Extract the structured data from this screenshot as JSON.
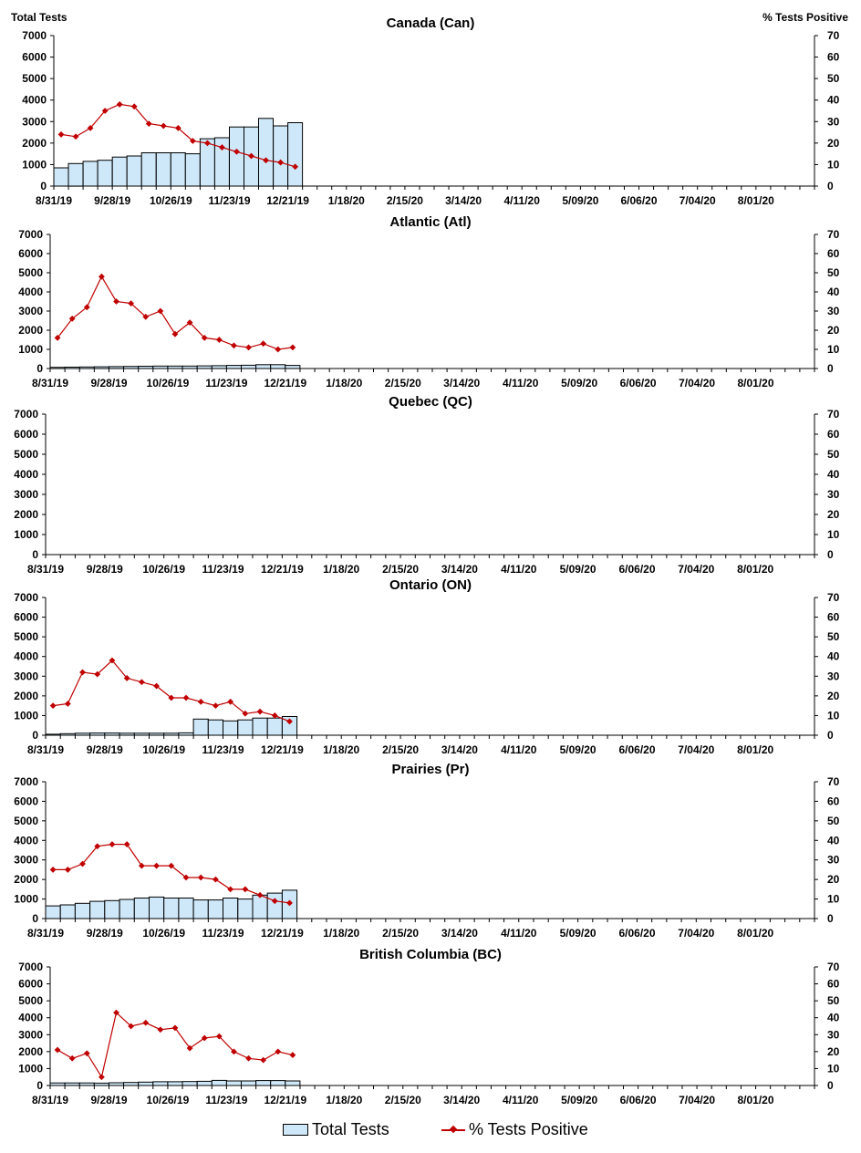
{
  "axis_headers": {
    "left": "Total Tests",
    "right": "% Tests Positive"
  },
  "legend": {
    "bars": "Total Tests",
    "line": "% Tests Positive"
  },
  "colors": {
    "bar_fill": "#cfe8f9",
    "bar_stroke": "#000000",
    "line": "#c00000"
  },
  "x_tick_labels": [
    "8/31/19",
    "9/28/19",
    "10/26/19",
    "11/23/19",
    "12/21/19",
    "1/18/20",
    "2/15/20",
    "3/14/20",
    "4/11/20",
    "5/09/20",
    "6/06/20",
    "7/04/20",
    "8/01/20"
  ],
  "left_ticks": [
    "0",
    "1000",
    "2000",
    "3000",
    "4000",
    "5000",
    "6000",
    "7000"
  ],
  "right_ticks": [
    "0",
    "10",
    "20",
    "30",
    "40",
    "50",
    "60",
    "70"
  ],
  "chart_data": [
    {
      "type": "bar",
      "title": "Canada (Can)",
      "y_left_range": [
        0,
        7000
      ],
      "y_right_range": [
        0,
        70
      ],
      "weeks_on_axis": 52,
      "series": [
        {
          "name": "Total Tests",
          "axis": "left",
          "values": [
            850,
            1050,
            1150,
            1200,
            1350,
            1400,
            1550,
            1550,
            1550,
            1500,
            2200,
            2250,
            2750,
            2750,
            3150,
            2800,
            2950
          ]
        },
        {
          "name": "% Tests Positive",
          "axis": "right",
          "values": [
            24,
            23,
            27,
            35,
            38,
            37,
            29,
            28,
            27,
            21,
            20,
            18,
            16,
            14,
            12,
            11,
            9
          ]
        }
      ]
    },
    {
      "type": "bar",
      "title": "Atlantic (Atl)",
      "y_left_range": [
        0,
        7000
      ],
      "y_right_range": [
        0,
        70
      ],
      "weeks_on_axis": 52,
      "series": [
        {
          "name": "Total Tests",
          "axis": "left",
          "values": [
            60,
            70,
            80,
            90,
            100,
            110,
            120,
            130,
            130,
            130,
            140,
            150,
            160,
            170,
            200,
            200,
            160
          ]
        },
        {
          "name": "% Tests Positive",
          "axis": "right",
          "values": [
            16,
            26,
            32,
            48,
            35,
            34,
            27,
            30,
            18,
            24,
            16,
            15,
            12,
            11,
            13,
            10,
            11
          ]
        }
      ]
    },
    {
      "type": "bar",
      "title": "Quebec (QC)",
      "y_left_range": [
        0,
        7000
      ],
      "y_right_range": [
        0,
        70
      ],
      "weeks_on_axis": 52,
      "series": [
        {
          "name": "Total Tests",
          "axis": "left",
          "values": []
        },
        {
          "name": "% Tests Positive",
          "axis": "right",
          "values": []
        }
      ]
    },
    {
      "type": "bar",
      "title": "Ontario (ON)",
      "y_left_range": [
        0,
        7000
      ],
      "y_right_range": [
        0,
        70
      ],
      "weeks_on_axis": 52,
      "series": [
        {
          "name": "Total Tests",
          "axis": "left",
          "values": [
            50,
            80,
            100,
            110,
            110,
            100,
            100,
            100,
            100,
            120,
            820,
            780,
            730,
            780,
            870,
            870,
            950
          ]
        },
        {
          "name": "% Tests Positive",
          "axis": "right",
          "values": [
            15,
            16,
            32,
            31,
            38,
            29,
            27,
            25,
            19,
            19,
            17,
            15,
            17,
            11,
            12,
            10,
            7
          ]
        }
      ]
    },
    {
      "type": "bar",
      "title": "Prairies (Pr)",
      "y_left_range": [
        0,
        7000
      ],
      "y_right_range": [
        0,
        70
      ],
      "weeks_on_axis": 52,
      "series": [
        {
          "name": "Total Tests",
          "axis": "left",
          "values": [
            650,
            700,
            780,
            880,
            920,
            980,
            1050,
            1100,
            1050,
            1050,
            950,
            950,
            1050,
            1000,
            1200,
            1300,
            1450
          ]
        },
        {
          "name": "% Tests Positive",
          "axis": "right",
          "values": [
            25,
            25,
            28,
            37,
            38,
            38,
            27,
            27,
            27,
            21,
            21,
            20,
            15,
            15,
            12,
            9,
            8
          ]
        }
      ]
    },
    {
      "type": "bar",
      "title": "British Columbia (BC)",
      "y_left_range": [
        0,
        7000
      ],
      "y_right_range": [
        0,
        70
      ],
      "weeks_on_axis": 52,
      "series": [
        {
          "name": "Total Tests",
          "axis": "left",
          "values": [
            150,
            150,
            150,
            140,
            160,
            180,
            200,
            220,
            220,
            230,
            250,
            300,
            270,
            270,
            290,
            290,
            270
          ]
        },
        {
          "name": "% Tests Positive",
          "axis": "right",
          "values": [
            21,
            16,
            19,
            5,
            43,
            35,
            37,
            33,
            34,
            22,
            28,
            29,
            20,
            16,
            15,
            20,
            18
          ]
        }
      ]
    }
  ]
}
